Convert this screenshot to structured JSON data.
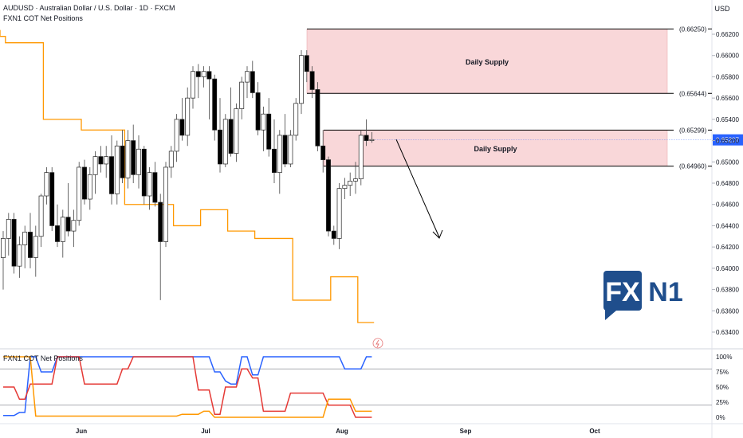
{
  "header": {
    "title": "AUDUSD · Australian Dollar / U.S. Dollar · 1D · FXCM",
    "indicator": "FXN1 COT Net Positions",
    "currency": "USD"
  },
  "sub_pane": {
    "title": "FXN1 COT Net Positions"
  },
  "logo": {
    "part1": "FX",
    "part2": "N1"
  },
  "colors": {
    "bull": "#ffffff",
    "bear": "#000000",
    "wick": "#444444",
    "cot_line": "#ff9800",
    "supply_fill": "#f9d7d9",
    "blue": "#2962ff",
    "red": "#e53935",
    "orange": "#ff9800",
    "price_badge": "#2962ff",
    "logo_blue": "#1f4e8c"
  },
  "chart_data": [
    {
      "type": "candlestick",
      "title": "AUDUSD · Australian Dollar / U.S. Dollar · 1D · FXCM",
      "y_axis": {
        "label": "USD",
        "ylim": [
          0.6332,
          0.6628
        ],
        "ticks": [
          "0.66200",
          "0.66000",
          "0.65800",
          "0.65600",
          "0.65400",
          "0.65200",
          "0.65000",
          "0.64800",
          "0.64600",
          "0.64400",
          "0.64200",
          "0.64000",
          "0.63800",
          "0.63600",
          "0.63400"
        ]
      },
      "x_axis": {
        "ticks": [
          "Jun",
          "Jul",
          "Aug",
          "Sep",
          "Oct"
        ]
      },
      "last_price": "0.65207",
      "candles": [
        {
          "o": 0.641,
          "h": 0.6435,
          "l": 0.638,
          "c": 0.6428
        },
        {
          "o": 0.6428,
          "h": 0.6452,
          "l": 0.6412,
          "c": 0.6446
        },
        {
          "o": 0.6446,
          "h": 0.6452,
          "l": 0.6395,
          "c": 0.6402
        },
        {
          "o": 0.6402,
          "h": 0.643,
          "l": 0.6391,
          "c": 0.6422
        },
        {
          "o": 0.6422,
          "h": 0.644,
          "l": 0.64,
          "c": 0.6434
        },
        {
          "o": 0.6434,
          "h": 0.6452,
          "l": 0.64,
          "c": 0.641
        },
        {
          "o": 0.641,
          "h": 0.644,
          "l": 0.6392,
          "c": 0.643
        },
        {
          "o": 0.643,
          "h": 0.647,
          "l": 0.642,
          "c": 0.6468
        },
        {
          "o": 0.6468,
          "h": 0.6495,
          "l": 0.646,
          "c": 0.649
        },
        {
          "o": 0.649,
          "h": 0.6495,
          "l": 0.6435,
          "c": 0.644
        },
        {
          "o": 0.644,
          "h": 0.646,
          "l": 0.642,
          "c": 0.6425
        },
        {
          "o": 0.6425,
          "h": 0.6455,
          "l": 0.641,
          "c": 0.6448
        },
        {
          "o": 0.6448,
          "h": 0.648,
          "l": 0.643,
          "c": 0.6435
        },
        {
          "o": 0.6435,
          "h": 0.6455,
          "l": 0.642,
          "c": 0.6445
        },
        {
          "o": 0.6445,
          "h": 0.65,
          "l": 0.644,
          "c": 0.6495
        },
        {
          "o": 0.6495,
          "h": 0.6502,
          "l": 0.646,
          "c": 0.6465
        },
        {
          "o": 0.6465,
          "h": 0.6495,
          "l": 0.6455,
          "c": 0.6488
        },
        {
          "o": 0.6488,
          "h": 0.651,
          "l": 0.647,
          "c": 0.6505
        },
        {
          "o": 0.6505,
          "h": 0.6515,
          "l": 0.649,
          "c": 0.6498
        },
        {
          "o": 0.6498,
          "h": 0.6515,
          "l": 0.6485,
          "c": 0.6505
        },
        {
          "o": 0.6505,
          "h": 0.6525,
          "l": 0.646,
          "c": 0.647
        },
        {
          "o": 0.647,
          "h": 0.652,
          "l": 0.646,
          "c": 0.6515
        },
        {
          "o": 0.6515,
          "h": 0.653,
          "l": 0.648,
          "c": 0.6485
        },
        {
          "o": 0.6485,
          "h": 0.653,
          "l": 0.6475,
          "c": 0.652
        },
        {
          "o": 0.652,
          "h": 0.6535,
          "l": 0.648,
          "c": 0.6488
        },
        {
          "o": 0.6488,
          "h": 0.6525,
          "l": 0.6475,
          "c": 0.6512
        },
        {
          "o": 0.6512,
          "h": 0.6515,
          "l": 0.646,
          "c": 0.6468
        },
        {
          "o": 0.6468,
          "h": 0.6495,
          "l": 0.6455,
          "c": 0.649
        },
        {
          "o": 0.649,
          "h": 0.65,
          "l": 0.6458,
          "c": 0.6462
        },
        {
          "o": 0.6462,
          "h": 0.647,
          "l": 0.637,
          "c": 0.6425
        },
        {
          "o": 0.6425,
          "h": 0.65,
          "l": 0.642,
          "c": 0.6495
        },
        {
          "o": 0.6495,
          "h": 0.6515,
          "l": 0.6485,
          "c": 0.651
        },
        {
          "o": 0.651,
          "h": 0.6545,
          "l": 0.65,
          "c": 0.654
        },
        {
          "o": 0.654,
          "h": 0.656,
          "l": 0.652,
          "c": 0.6525
        },
        {
          "o": 0.6525,
          "h": 0.657,
          "l": 0.6515,
          "c": 0.656
        },
        {
          "o": 0.656,
          "h": 0.659,
          "l": 0.655,
          "c": 0.6585
        },
        {
          "o": 0.6585,
          "h": 0.6592,
          "l": 0.656,
          "c": 0.658
        },
        {
          "o": 0.658,
          "h": 0.659,
          "l": 0.657,
          "c": 0.6585
        },
        {
          "o": 0.6585,
          "h": 0.659,
          "l": 0.654,
          "c": 0.6578
        },
        {
          "o": 0.6578,
          "h": 0.6582,
          "l": 0.652,
          "c": 0.653
        },
        {
          "o": 0.653,
          "h": 0.656,
          "l": 0.649,
          "c": 0.6498
        },
        {
          "o": 0.6498,
          "h": 0.6545,
          "l": 0.6495,
          "c": 0.654
        },
        {
          "o": 0.654,
          "h": 0.657,
          "l": 0.6505,
          "c": 0.6508
        },
        {
          "o": 0.6508,
          "h": 0.6555,
          "l": 0.65,
          "c": 0.655
        },
        {
          "o": 0.655,
          "h": 0.658,
          "l": 0.654,
          "c": 0.6575
        },
        {
          "o": 0.6575,
          "h": 0.659,
          "l": 0.656,
          "c": 0.6585
        },
        {
          "o": 0.6585,
          "h": 0.6595,
          "l": 0.656,
          "c": 0.6565
        },
        {
          "o": 0.6565,
          "h": 0.6575,
          "l": 0.6525,
          "c": 0.653
        },
        {
          "o": 0.653,
          "h": 0.6552,
          "l": 0.651,
          "c": 0.6545
        },
        {
          "o": 0.6545,
          "h": 0.656,
          "l": 0.6505,
          "c": 0.6512
        },
        {
          "o": 0.6512,
          "h": 0.654,
          "l": 0.648,
          "c": 0.649
        },
        {
          "o": 0.649,
          "h": 0.653,
          "l": 0.647,
          "c": 0.6525
        },
        {
          "o": 0.6525,
          "h": 0.6545,
          "l": 0.6495,
          "c": 0.6498
        },
        {
          "o": 0.6498,
          "h": 0.653,
          "l": 0.6495,
          "c": 0.6525
        },
        {
          "o": 0.6525,
          "h": 0.656,
          "l": 0.652,
          "c": 0.6555
        },
        {
          "o": 0.6555,
          "h": 0.6605,
          "l": 0.6545,
          "c": 0.66
        },
        {
          "o": 0.66,
          "h": 0.6605,
          "l": 0.6575,
          "c": 0.6585
        },
        {
          "o": 0.6585,
          "h": 0.659,
          "l": 0.656,
          "c": 0.6568
        },
        {
          "o": 0.6568,
          "h": 0.6575,
          "l": 0.651,
          "c": 0.6515
        },
        {
          "o": 0.6515,
          "h": 0.653,
          "l": 0.649,
          "c": 0.6502
        },
        {
          "o": 0.6502,
          "h": 0.6505,
          "l": 0.643,
          "c": 0.6435
        },
        {
          "o": 0.6435,
          "h": 0.644,
          "l": 0.6422,
          "c": 0.6428
        },
        {
          "o": 0.6428,
          "h": 0.648,
          "l": 0.6418,
          "c": 0.6475
        },
        {
          "o": 0.6475,
          "h": 0.6485,
          "l": 0.6465,
          "c": 0.6478
        },
        {
          "o": 0.6478,
          "h": 0.649,
          "l": 0.6468,
          "c": 0.6482
        },
        {
          "o": 0.6482,
          "h": 0.65,
          "l": 0.647,
          "c": 0.6484
        },
        {
          "o": 0.6484,
          "h": 0.653,
          "l": 0.6478,
          "c": 0.6525
        },
        {
          "o": 0.6525,
          "h": 0.654,
          "l": 0.6515,
          "c": 0.652
        },
        {
          "o": 0.652,
          "h": 0.6528,
          "l": 0.6518,
          "c": 0.6521
        }
      ],
      "cot_overlay": [
        0.6618,
        0.6612,
        0.6612,
        0.6612,
        0.6612,
        0.6612,
        0.6612,
        0.6612,
        0.654,
        0.654,
        0.654,
        0.654,
        0.654,
        0.654,
        0.654,
        0.653,
        0.653,
        0.653,
        0.653,
        0.653,
        0.653,
        0.653,
        0.653,
        0.646,
        0.646,
        0.646,
        0.646,
        0.646,
        0.646,
        0.646,
        0.646,
        0.646,
        0.644,
        0.644,
        0.644,
        0.644,
        0.644,
        0.6455,
        0.6455,
        0.6455,
        0.6455,
        0.6455,
        0.6435,
        0.6435,
        0.6435,
        0.6435,
        0.6435,
        0.6428,
        0.6428,
        0.6428,
        0.6428,
        0.6428,
        0.6428,
        0.6428,
        0.637,
        0.637,
        0.637,
        0.637,
        0.637,
        0.637,
        0.637,
        0.6392,
        0.6392,
        0.6392,
        0.6392,
        0.6392,
        0.6349,
        0.6349,
        0.6349
      ],
      "levels": [
        {
          "price": 0.6625,
          "label": "(0.66250)"
        },
        {
          "price": 0.65644,
          "label": "(0.65644)"
        },
        {
          "price": 0.65299,
          "label": "(0.65299)"
        },
        {
          "price": 0.6496,
          "label": "(0.64960)"
        }
      ],
      "zones": [
        {
          "label": "Daily Supply",
          "top": 0.6625,
          "bottom": 0.65644
        },
        {
          "label": "Daily Supply",
          "top": 0.65299,
          "bottom": 0.6496
        }
      ]
    },
    {
      "type": "line",
      "title": "FXN1 COT Net Positions",
      "y_axis": {
        "ticks": [
          "100%",
          "75%",
          "50%",
          "25%",
          "0%"
        ],
        "ylim": [
          0,
          100
        ]
      },
      "series": [
        {
          "color": "#2962ff",
          "values": [
            3,
            3,
            3,
            8,
            8,
            100,
            100,
            75,
            75,
            75,
            100,
            100,
            100,
            100,
            100,
            100,
            100,
            100,
            100,
            100,
            100,
            100,
            100,
            100,
            100,
            100,
            100,
            100,
            100,
            100,
            100,
            100,
            100,
            100,
            100,
            100,
            100,
            100,
            100,
            75,
            75,
            60,
            55,
            55,
            100,
            100,
            70,
            70,
            100,
            100,
            100,
            100,
            100,
            100,
            100,
            100,
            100,
            100,
            100,
            100,
            100,
            100,
            100,
            80,
            80,
            80,
            80,
            100,
            100
          ]
        },
        {
          "color": "#e53935",
          "values": [
            50,
            50,
            50,
            30,
            30,
            55,
            55,
            55,
            55,
            55,
            100,
            100,
            100,
            100,
            100,
            55,
            55,
            55,
            55,
            55,
            55,
            55,
            80,
            80,
            100,
            100,
            100,
            100,
            100,
            100,
            100,
            100,
            100,
            100,
            100,
            100,
            45,
            45,
            45,
            5,
            5,
            50,
            50,
            50,
            80,
            80,
            65,
            65,
            10,
            10,
            10,
            10,
            10,
            40,
            40,
            40,
            40,
            40,
            40,
            40,
            20,
            20,
            20,
            20,
            20,
            0,
            0,
            0,
            0
          ]
        },
        {
          "color": "#ff9800",
          "values": [
            100,
            100,
            100,
            100,
            100,
            100,
            2,
            2,
            2,
            2,
            2,
            2,
            2,
            2,
            2,
            2,
            2,
            2,
            2,
            2,
            2,
            2,
            2,
            2,
            2,
            2,
            2,
            2,
            2,
            2,
            2,
            2,
            2,
            5,
            5,
            5,
            5,
            10,
            10,
            0,
            0,
            0,
            0,
            0,
            0,
            0,
            0,
            0,
            0,
            0,
            0,
            0,
            0,
            0,
            0,
            0,
            0,
            0,
            0,
            0,
            30,
            30,
            30,
            30,
            30,
            10,
            10,
            10,
            10
          ]
        }
      ]
    }
  ]
}
